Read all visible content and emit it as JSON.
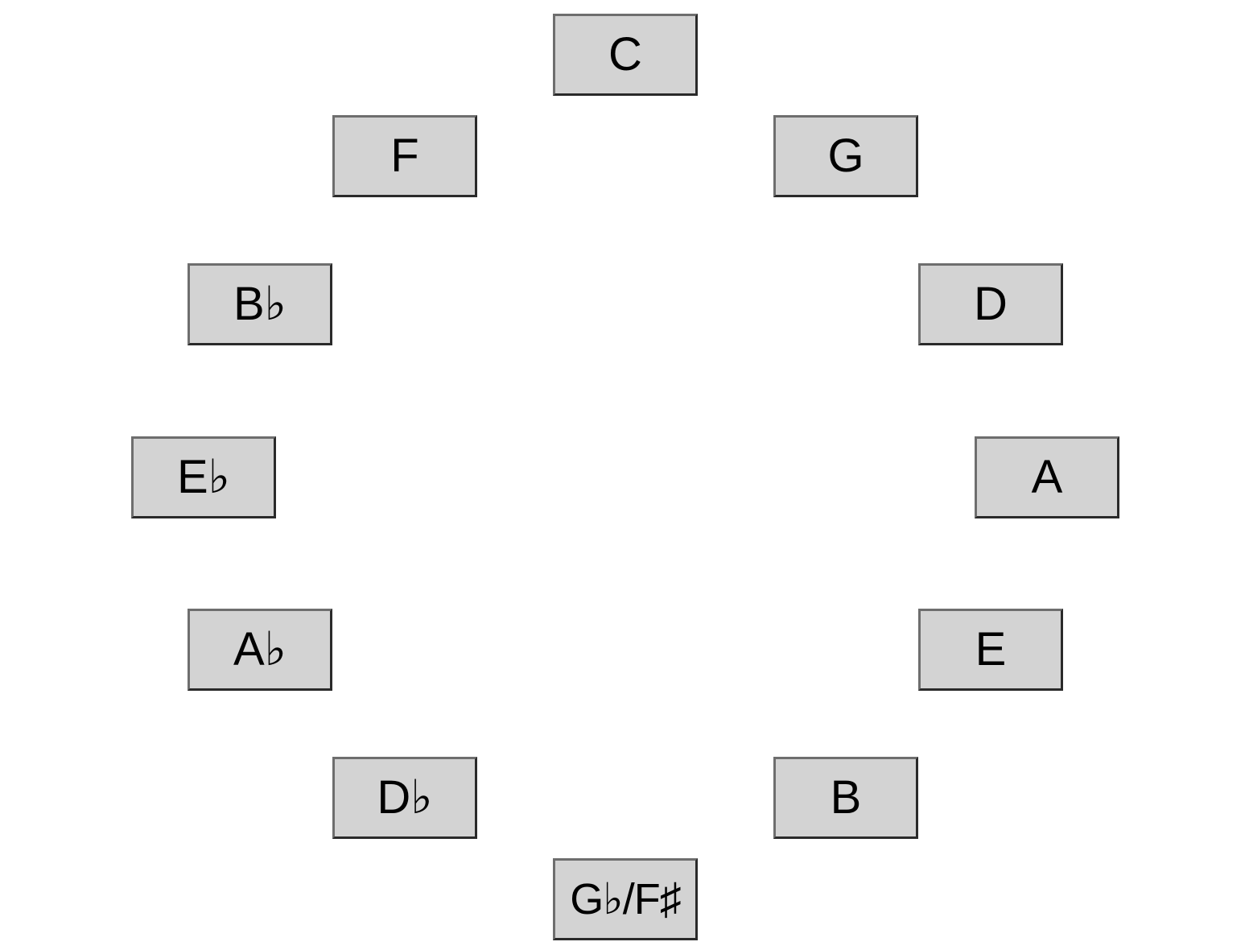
{
  "circle_of_fifths": {
    "keys": [
      {
        "label": "C"
      },
      {
        "label": "G"
      },
      {
        "label": "D"
      },
      {
        "label": "A"
      },
      {
        "label": "E"
      },
      {
        "label": "B"
      },
      {
        "label": "G♭/F♯"
      },
      {
        "label": "D♭"
      },
      {
        "label": "A♭"
      },
      {
        "label": "E♭"
      },
      {
        "label": "B♭"
      },
      {
        "label": "F"
      }
    ],
    "colors": {
      "button_fill": "#d3d3d3",
      "button_border": "#2a2a2a",
      "text": "#000000",
      "background": "#ffffff"
    }
  }
}
